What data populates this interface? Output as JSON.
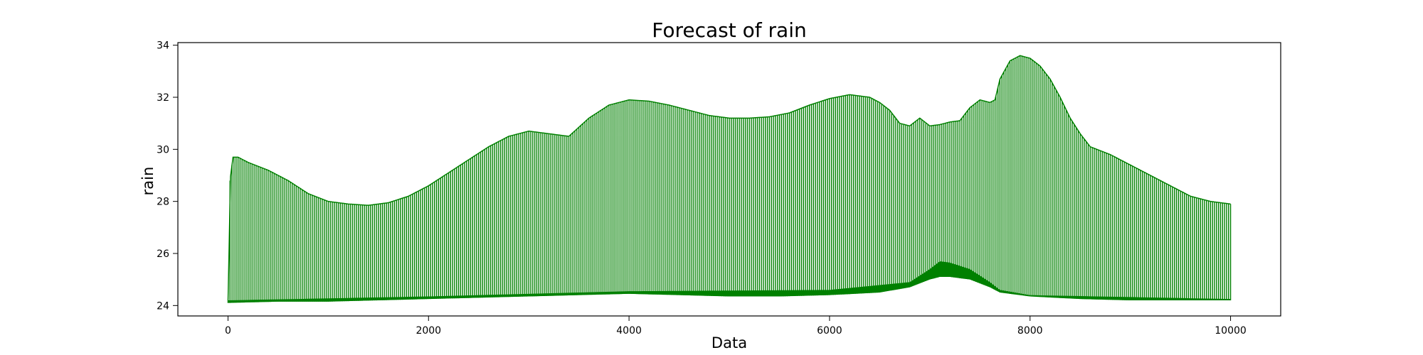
{
  "chart_data": {
    "type": "line",
    "title": "Forecast of rain",
    "xlabel": "Data",
    "ylabel": "rain",
    "xlim": [
      -500,
      10500
    ],
    "ylim": [
      23.6,
      34.1
    ],
    "xticks": [
      0,
      2000,
      4000,
      6000,
      8000,
      10000
    ],
    "yticks": [
      24,
      26,
      28,
      30,
      32,
      34
    ],
    "grid": false,
    "legend": "none",
    "series": [
      {
        "color": "#008000",
        "upper_envelope": {
          "x": [
            0,
            10,
            50,
            100,
            200,
            400,
            600,
            800,
            1000,
            1200,
            1400,
            1600,
            1800,
            2000,
            2200,
            2400,
            2600,
            2800,
            3000,
            3200,
            3400,
            3600,
            3800,
            4000,
            4200,
            4400,
            4600,
            4800,
            5000,
            5200,
            5400,
            5600,
            5800,
            6000,
            6200,
            6400,
            6500,
            6600,
            6700,
            6800,
            6900,
            7000,
            7100,
            7200,
            7300,
            7400,
            7500,
            7600,
            7650,
            7700,
            7800,
            7900,
            8000,
            8100,
            8200,
            8300,
            8400,
            8500,
            8600,
            8800,
            9000,
            9200,
            9400,
            9600,
            9800,
            10000
          ],
          "y": [
            24.1,
            28.5,
            29.7,
            29.7,
            29.5,
            29.2,
            28.8,
            28.3,
            28.0,
            27.9,
            27.85,
            27.95,
            28.2,
            28.6,
            29.1,
            29.6,
            30.1,
            30.5,
            30.7,
            30.6,
            30.5,
            31.2,
            31.7,
            31.9,
            31.85,
            31.7,
            31.5,
            31.3,
            31.2,
            31.2,
            31.25,
            31.4,
            31.7,
            31.95,
            32.1,
            32.0,
            31.8,
            31.5,
            31.0,
            30.9,
            31.2,
            30.9,
            30.95,
            31.05,
            31.1,
            31.6,
            31.9,
            31.8,
            31.9,
            32.7,
            33.4,
            33.6,
            33.5,
            33.2,
            32.7,
            32.0,
            31.2,
            30.6,
            30.1,
            29.8,
            29.4,
            29.0,
            28.6,
            28.2,
            28.0,
            27.9
          ]
        },
        "lower_envelope": {
          "x": [
            0,
            500,
            1000,
            1500,
            2000,
            2500,
            3000,
            3500,
            4000,
            4500,
            5000,
            5500,
            6000,
            6500,
            6800,
            7000,
            7100,
            7200,
            7400,
            7600,
            7700,
            8000,
            8500,
            9000,
            9500,
            10000
          ],
          "y": [
            24.1,
            24.15,
            24.15,
            24.2,
            24.25,
            24.3,
            24.35,
            24.4,
            24.45,
            24.4,
            24.35,
            24.35,
            24.4,
            24.5,
            24.7,
            25.0,
            25.1,
            25.1,
            25.0,
            24.7,
            24.5,
            24.35,
            24.25,
            24.2,
            24.2,
            24.2
          ]
        },
        "band_upper": {
          "x": [
            0,
            2000,
            4000,
            6000,
            6800,
            7000,
            7100,
            7200,
            7400,
            7600,
            7700,
            8000,
            10000
          ],
          "y": [
            24.2,
            24.35,
            24.55,
            24.6,
            24.9,
            25.4,
            25.7,
            25.65,
            25.4,
            24.9,
            24.6,
            24.4,
            24.25
          ]
        }
      }
    ]
  }
}
